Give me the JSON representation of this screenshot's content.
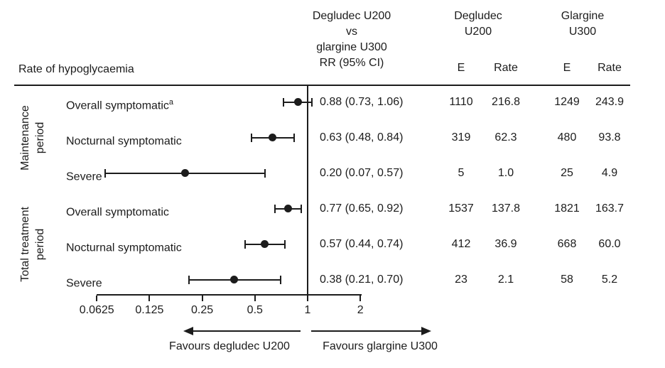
{
  "figure_title": "Rate of hypoglycaemia",
  "header": {
    "comparison_lines": [
      "Degludec U200",
      "vs",
      "glargine U300",
      "RR (95% CI)"
    ],
    "degludec_group_lines": [
      "Degludec",
      "U200"
    ],
    "glargine_group_lines": [
      "Glargine",
      "U300"
    ],
    "events_label": "E",
    "rate_label": "Rate"
  },
  "colors": {
    "ink": "#1c1c1c",
    "background": "#ffffff"
  },
  "chart_data": {
    "type": "forest",
    "title": "Rate of hypoglycaemia",
    "x_scale": "log2",
    "x_range": [
      0.0625,
      2
    ],
    "x_ticks": [
      0.0625,
      0.125,
      0.25,
      0.5,
      1,
      2
    ],
    "x_tick_labels": [
      "0.0625",
      "0.125",
      "0.25",
      "0.5",
      "1",
      "2"
    ],
    "reference_value": 1,
    "footer_arrows": {
      "left": "Favours degludec U200",
      "right": "Favours glargine U300"
    },
    "row_groups": [
      {
        "label_lines": [
          "Maintenance",
          "period"
        ],
        "row_indices": [
          0,
          1,
          2
        ]
      },
      {
        "label_lines": [
          "Total treatment",
          "period"
        ],
        "row_indices": [
          3,
          4,
          5
        ]
      }
    ],
    "rows": [
      {
        "group": "Maintenance period",
        "label": "Overall symptomatic",
        "label_sup": "a",
        "rr": 0.88,
        "ci_low": 0.73,
        "ci_high": 1.06,
        "rr_ci_text": "0.88 (0.73, 1.06)",
        "degludec_e": "1110",
        "degludec_rate": "216.8",
        "glargine_e": "1249",
        "glargine_rate": "243.9"
      },
      {
        "group": "Maintenance period",
        "label": "Nocturnal symptomatic",
        "label_sup": "",
        "rr": 0.63,
        "ci_low": 0.48,
        "ci_high": 0.84,
        "rr_ci_text": "0.63 (0.48, 0.84)",
        "degludec_e": "319",
        "degludec_rate": "62.3",
        "glargine_e": "480",
        "glargine_rate": "93.8"
      },
      {
        "group": "Maintenance period",
        "label": "Severe",
        "label_sup": "",
        "rr": 0.2,
        "ci_low": 0.07,
        "ci_high": 0.57,
        "rr_ci_text": "0.20 (0.07, 0.57)",
        "degludec_e": "5",
        "degludec_rate": "1.0",
        "glargine_e": "25",
        "glargine_rate": "4.9"
      },
      {
        "group": "Total treatment period",
        "label": "Overall symptomatic",
        "label_sup": "",
        "rr": 0.77,
        "ci_low": 0.65,
        "ci_high": 0.92,
        "rr_ci_text": "0.77 (0.65, 0.92)",
        "degludec_e": "1537",
        "degludec_rate": "137.8",
        "glargine_e": "1821",
        "glargine_rate": "163.7"
      },
      {
        "group": "Total treatment period",
        "label": "Nocturnal symptomatic",
        "label_sup": "",
        "rr": 0.57,
        "ci_low": 0.44,
        "ci_high": 0.74,
        "rr_ci_text": "0.57 (0.44, 0.74)",
        "degludec_e": "412",
        "degludec_rate": "36.9",
        "glargine_e": "668",
        "glargine_rate": "60.0"
      },
      {
        "group": "Total treatment period",
        "label": "Severe",
        "label_sup": "",
        "rr": 0.38,
        "ci_low": 0.21,
        "ci_high": 0.7,
        "rr_ci_text": "0.38 (0.21, 0.70)",
        "degludec_e": "23",
        "degludec_rate": "2.1",
        "glargine_e": "58",
        "glargine_rate": "5.2"
      }
    ]
  }
}
